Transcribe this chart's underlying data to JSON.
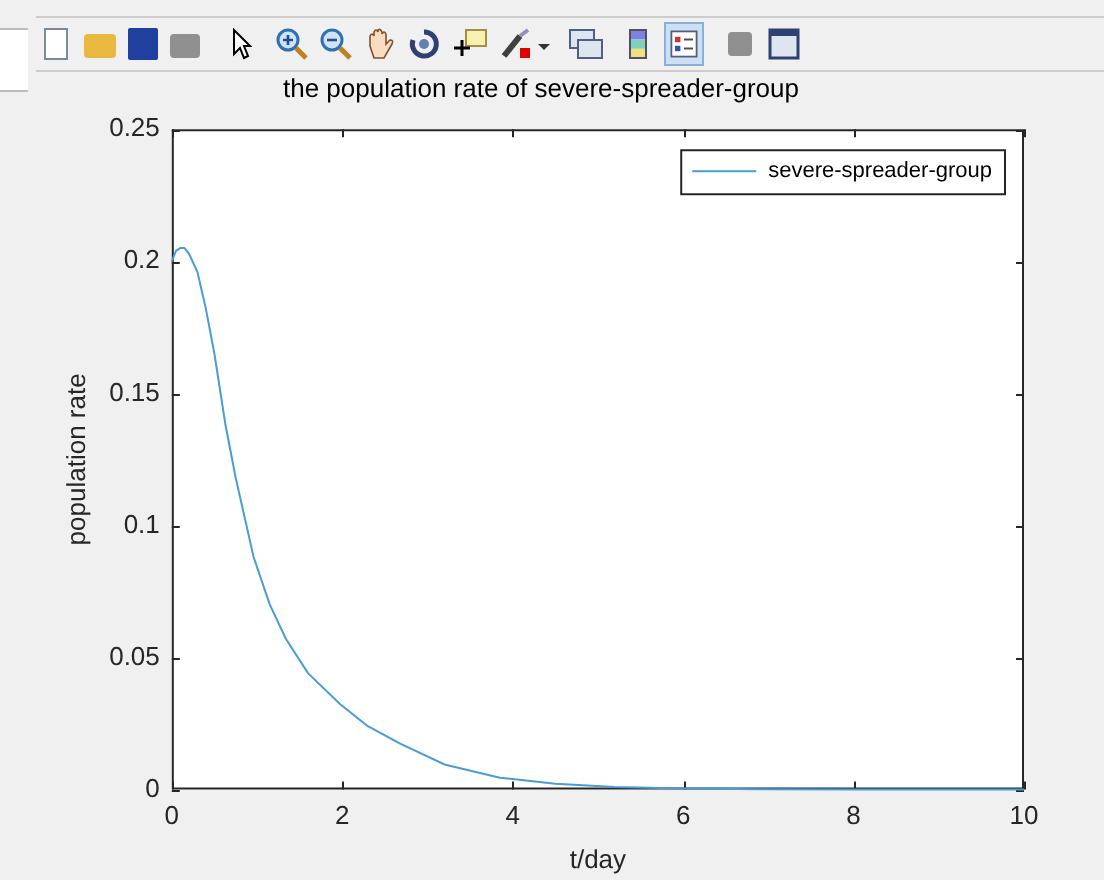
{
  "chart_data": {
    "type": "line",
    "title": "the population rate of severe-spreader-group",
    "xlabel": "t/day",
    "ylabel": "population rate",
    "xlim": [
      0,
      10
    ],
    "ylim": [
      0,
      0.25
    ],
    "xticks": [
      0,
      2,
      4,
      6,
      8,
      10
    ],
    "yticks": [
      0,
      0.05,
      0.1,
      0.15,
      0.2,
      0.25
    ],
    "grid": false,
    "legend": "top right",
    "marker": "none",
    "line_style": "solid",
    "series": [
      {
        "name": "severe-spreader-group",
        "color": "#4a9bd6",
        "x": [
          0,
          0.05,
          0.1,
          0.15,
          0.2,
          0.3,
          0.4,
          0.5,
          0.63,
          0.75,
          0.96,
          1.15,
          1.34,
          1.6,
          1.97,
          2.3,
          2.68,
          3.2,
          3.85,
          4.5,
          5.2,
          6,
          7,
          8,
          9,
          10
        ],
        "values": [
          0.2,
          0.204,
          0.205,
          0.205,
          0.203,
          0.196,
          0.182,
          0.165,
          0.138,
          0.118,
          0.088,
          0.07,
          0.057,
          0.044,
          0.0325,
          0.024,
          0.0174,
          0.0095,
          0.0045,
          0.0022,
          0.001,
          0.0004,
          0.0001,
          0,
          0,
          0
        ]
      }
    ]
  }
}
